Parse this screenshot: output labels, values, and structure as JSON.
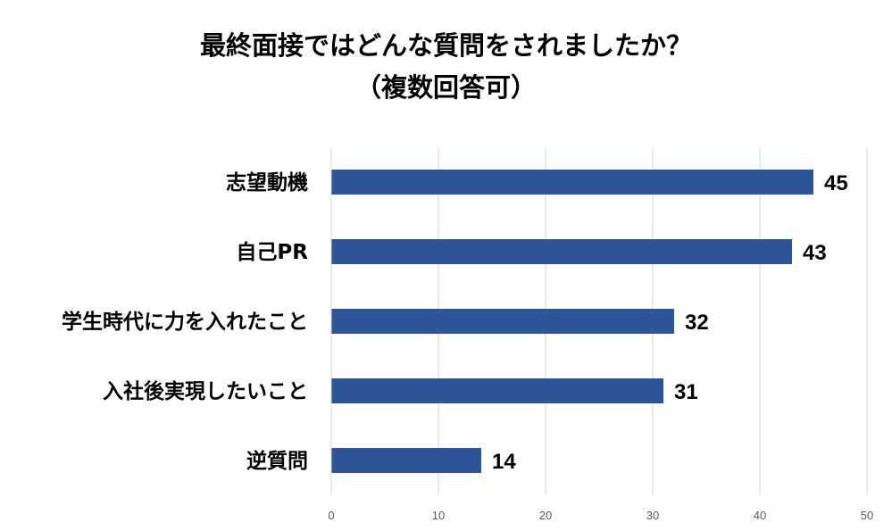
{
  "chart_data": {
    "type": "bar",
    "orientation": "horizontal",
    "title_lines": [
      "最終面接ではどんな質問をされましたか？",
      "（複数回答可）"
    ],
    "categories": [
      "志望動機",
      "自己PR",
      "学生時代に力を入れたこと",
      "入社後実現したいこと",
      "逆質問"
    ],
    "values": [
      45,
      43,
      32,
      31,
      14
    ],
    "xlim": [
      0,
      50
    ],
    "xticks": [
      0,
      10,
      20,
      30,
      40,
      50
    ],
    "grid": true,
    "bar_color": "#2e5597",
    "data_labels": true
  }
}
